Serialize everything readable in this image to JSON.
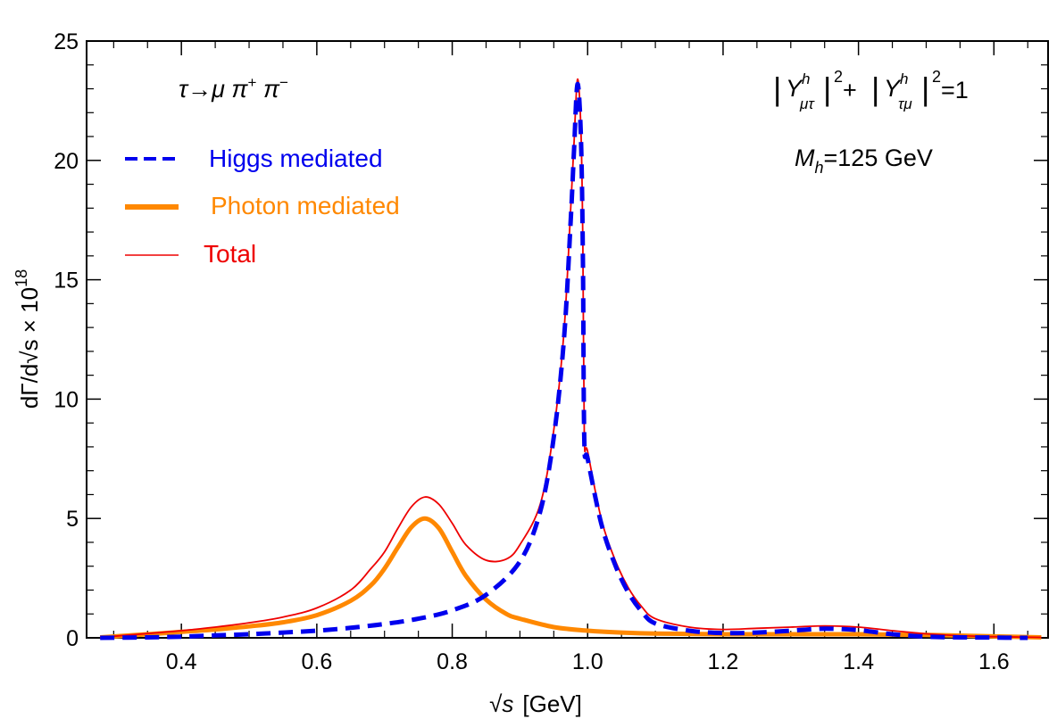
{
  "chart_data": {
    "type": "line",
    "title": "",
    "xlabel": {
      "root": "√",
      "var": "s",
      "unit": "[GeV]"
    },
    "ylabel": "dΓ/d√s × 10",
    "ylabel_exp": "18",
    "xlim": [
      0.26,
      1.68
    ],
    "ylim": [
      0,
      25
    ],
    "x_ticks": [
      0.4,
      0.6,
      0.8,
      1.0,
      1.2,
      1.4,
      1.6
    ],
    "x_tick_labels": [
      "0.4",
      "0.6",
      "0.8",
      "1.0",
      "1.2",
      "1.4",
      "1.6"
    ],
    "y_ticks": [
      0,
      5,
      10,
      15,
      20,
      25
    ],
    "y_tick_labels": [
      "0",
      "5",
      "10",
      "15",
      "20",
      "25"
    ],
    "legend_position": "top-left",
    "annotations": {
      "process": {
        "tau": "τ",
        "arrow": "→",
        "mu": "μ π",
        "plus": "+",
        "pi": " π",
        "minus": "−"
      },
      "coupling": {
        "bar": "|",
        "Y": "Y",
        "h": "h",
        "sub1": "μτ",
        "sub2": "τμ",
        "sq": "2",
        "plus": " + ",
        "eq": "=1"
      },
      "mass": {
        "M": "M",
        "sub": "h",
        "rest": "=125 GeV"
      }
    },
    "series": [
      {
        "name": "Higgs mediated",
        "color": "#0000ee",
        "style": "dashed",
        "x": [
          0.28,
          0.35,
          0.4,
          0.45,
          0.5,
          0.55,
          0.6,
          0.65,
          0.7,
          0.75,
          0.8,
          0.85,
          0.9,
          0.93,
          0.95,
          0.965,
          0.975,
          0.98,
          0.985,
          0.99,
          0.993,
          0.995,
          1.0,
          1.02,
          1.04,
          1.06,
          1.08,
          1.1,
          1.15,
          1.2,
          1.25,
          1.3,
          1.35,
          1.4,
          1.45,
          1.5,
          1.55,
          1.6,
          1.65
        ],
        "values": [
          0,
          0.02,
          0.05,
          0.1,
          0.15,
          0.22,
          0.3,
          0.42,
          0.58,
          0.8,
          1.15,
          1.8,
          3.2,
          5.3,
          8.4,
          12.5,
          17.5,
          20.5,
          23.2,
          21.0,
          16.0,
          8.3,
          7.5,
          4.8,
          3.1,
          1.9,
          1.1,
          0.6,
          0.3,
          0.2,
          0.22,
          0.3,
          0.38,
          0.32,
          0.15,
          0.05,
          0.02,
          0.01,
          0
        ]
      },
      {
        "name": "Photon mediated",
        "color": "#ff8800",
        "style": "solid",
        "x": [
          0.28,
          0.35,
          0.4,
          0.45,
          0.5,
          0.55,
          0.6,
          0.65,
          0.68,
          0.7,
          0.72,
          0.74,
          0.76,
          0.78,
          0.8,
          0.82,
          0.85,
          0.88,
          0.9,
          0.95,
          1.0,
          1.05,
          1.1,
          1.2,
          1.3,
          1.4,
          1.5,
          1.6,
          1.67
        ],
        "values": [
          0.02,
          0.15,
          0.25,
          0.35,
          0.48,
          0.65,
          0.95,
          1.55,
          2.2,
          2.9,
          3.8,
          4.65,
          5.0,
          4.6,
          3.6,
          2.6,
          1.6,
          1.0,
          0.8,
          0.45,
          0.3,
          0.22,
          0.18,
          0.15,
          0.15,
          0.15,
          0.12,
          0.06,
          0.02
        ]
      },
      {
        "name": "Total",
        "color": "#ee0000",
        "style": "solid",
        "x": [
          0.28,
          0.35,
          0.4,
          0.45,
          0.5,
          0.55,
          0.6,
          0.65,
          0.68,
          0.7,
          0.72,
          0.74,
          0.76,
          0.78,
          0.8,
          0.82,
          0.85,
          0.88,
          0.9,
          0.93,
          0.95,
          0.965,
          0.975,
          0.98,
          0.985,
          0.99,
          0.993,
          0.995,
          1.0,
          1.02,
          1.04,
          1.06,
          1.08,
          1.1,
          1.15,
          1.2,
          1.25,
          1.3,
          1.35,
          1.4,
          1.45,
          1.5,
          1.55,
          1.6,
          1.67
        ],
        "values": [
          0.02,
          0.18,
          0.3,
          0.45,
          0.63,
          0.87,
          1.25,
          2.0,
          2.9,
          3.6,
          4.6,
          5.5,
          5.9,
          5.6,
          4.8,
          3.9,
          3.25,
          3.3,
          3.9,
          5.6,
          8.7,
          12.8,
          18.0,
          20.8,
          23.4,
          21.3,
          16.4,
          8.5,
          7.8,
          5.0,
          3.3,
          2.1,
          1.3,
          0.8,
          0.45,
          0.35,
          0.4,
          0.45,
          0.5,
          0.45,
          0.3,
          0.17,
          0.09,
          0.05,
          0.02
        ]
      }
    ]
  }
}
